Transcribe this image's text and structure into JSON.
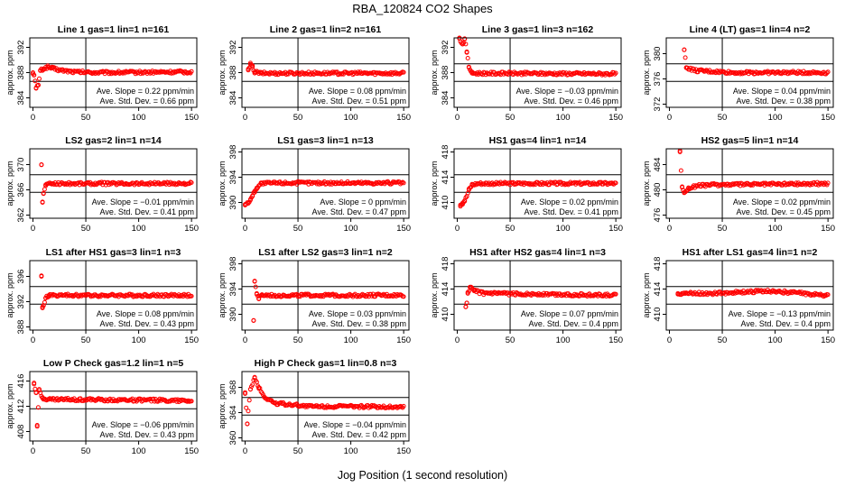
{
  "title": "RBA_120824  CO2 Shapes",
  "xlabel": "Jog Position (1 second resolution)",
  "colors": {
    "points": "#ff0000",
    "axes": "#000000"
  },
  "chart_data": [
    {
      "type": "scatter",
      "title": "Line 1 gas=1 lin=1 n=161",
      "ylabel": "approx. ppm",
      "xlim": [
        -3,
        155
      ],
      "ylim": [
        382.5,
        393.5
      ],
      "xticks": [
        0,
        50,
        100,
        150
      ],
      "yticks": [
        384,
        388,
        392
      ],
      "hlines": [
        386.6,
        389.4
      ],
      "vline": 50,
      "slope": "Ave. Slope = 0.22 ppm/min",
      "stddev": "Ave. Std. Dev. = 0.66 ppm",
      "shape": [
        [
          0,
          388
        ],
        [
          1,
          387.6
        ],
        [
          3,
          385.5
        ],
        [
          5,
          386
        ],
        [
          7,
          388.3
        ],
        [
          10,
          388.6
        ],
        [
          14,
          388.9
        ],
        [
          18,
          388.7
        ],
        [
          25,
          388.4
        ],
        [
          40,
          388.1
        ],
        [
          60,
          388.0
        ],
        [
          150,
          388.1
        ]
      ]
    },
    {
      "type": "scatter",
      "title": "Line 2 gas=1 lin=2 n=161",
      "ylabel": "approx. ppm",
      "xlim": [
        -3,
        155
      ],
      "ylim": [
        382.5,
        393.5
      ],
      "xticks": [
        0,
        50,
        100,
        150
      ],
      "yticks": [
        384,
        388,
        392
      ],
      "hlines": [
        386.6,
        389.4
      ],
      "vline": 50,
      "slope": "Ave. Slope = 0.08 ppm/min",
      "stddev": "Ave. Std. Dev. = 0.51 ppm",
      "shape": [
        [
          3,
          388.4
        ],
        [
          5,
          389.3
        ],
        [
          7,
          388.9
        ],
        [
          9,
          388.1
        ],
        [
          15,
          387.9
        ],
        [
          150,
          387.9
        ]
      ]
    },
    {
      "type": "scatter",
      "title": "Line 3 gas=1 lin=3 n=162",
      "ylabel": "approx. ppm",
      "xlim": [
        -3,
        155
      ],
      "ylim": [
        382.5,
        393.5
      ],
      "xticks": [
        0,
        50,
        100,
        150
      ],
      "yticks": [
        384,
        388,
        392
      ],
      "hlines": [
        386.6,
        389.4
      ],
      "vline": 50,
      "slope": "Ave. Slope = −0.03 ppm/min",
      "stddev": "Ave. Std. Dev. = 0.46 ppm",
      "shape": [
        [
          2,
          393.4
        ],
        [
          5,
          392.5
        ],
        [
          7,
          393.3
        ],
        [
          9,
          391.3
        ],
        [
          11,
          388.9
        ],
        [
          14,
          387.9
        ],
        [
          150,
          387.8
        ]
      ]
    },
    {
      "type": "scatter",
      "title": "Line 4 (LT) gas=1 lin=4 n=2",
      "ylabel": "approx. ppm",
      "xlim": [
        -3,
        155
      ],
      "ylim": [
        371.5,
        382.5
      ],
      "xticks": [
        0,
        50,
        100,
        150
      ],
      "yticks": [
        372,
        376,
        380
      ],
      "hlines": [
        375.6,
        378.4
      ],
      "vline": 50,
      "slope": "Ave. Slope = 0.04 ppm/min",
      "stddev": "Ave. Std. Dev. = 0.38 ppm",
      "shape": [
        [
          14,
          380.6
        ],
        [
          16,
          377.8
        ],
        [
          25,
          377.3
        ],
        [
          60,
          377.0
        ],
        [
          150,
          377.0
        ]
      ]
    },
    {
      "type": "scatter",
      "title": "LS2 gas=2 lin=1 n=14",
      "ylabel": "approx. ppm",
      "xlim": [
        -3,
        155
      ],
      "ylim": [
        361.5,
        372.5
      ],
      "xticks": [
        0,
        50,
        100,
        150
      ],
      "yticks": [
        362,
        366,
        370
      ],
      "hlines": [
        365.6,
        368.4
      ],
      "vline": 50,
      "slope": "Ave. Slope = −0.01 ppm/min",
      "stddev": "Ave. Std. Dev. = 0.41 ppm",
      "shape": [
        [
          8,
          370
        ],
        [
          9,
          364
        ],
        [
          10,
          365.4
        ],
        [
          12,
          366.8
        ],
        [
          18,
          367
        ],
        [
          150,
          367
        ]
      ]
    },
    {
      "type": "scatter",
      "title": "LS1 gas=3 lin=1 n=13",
      "ylabel": "approx. ppm",
      "xlim": [
        -3,
        155
      ],
      "ylim": [
        387.5,
        398.5
      ],
      "xticks": [
        0,
        50,
        100,
        150
      ],
      "yticks": [
        390,
        394,
        398
      ],
      "hlines": [
        391.6,
        394.4
      ],
      "vline": 50,
      "slope": "Ave. Slope = 0 ppm/min",
      "stddev": "Ave. Std. Dev. = 0.47 ppm",
      "shape": [
        [
          0,
          389.7
        ],
        [
          3,
          389.9
        ],
        [
          5,
          390.5
        ],
        [
          7,
          391
        ],
        [
          9,
          391.8
        ],
        [
          11,
          392.3
        ],
        [
          15,
          393
        ],
        [
          30,
          393.1
        ],
        [
          150,
          393.1
        ]
      ]
    },
    {
      "type": "scatter",
      "title": "HS1 gas=4 lin=1 n=14",
      "ylabel": "approx. ppm",
      "xlim": [
        -3,
        155
      ],
      "ylim": [
        407.5,
        418.5
      ],
      "xticks": [
        0,
        50,
        100,
        150
      ],
      "yticks": [
        410,
        414,
        418
      ],
      "hlines": [
        411.6,
        414.4
      ],
      "vline": 50,
      "slope": "Ave. Slope = 0.02 ppm/min",
      "stddev": "Ave. Std. Dev. = 0.41 ppm",
      "shape": [
        [
          3,
          409.6
        ],
        [
          5,
          409.9
        ],
        [
          7,
          410.3
        ],
        [
          9,
          411
        ],
        [
          11,
          412
        ],
        [
          14,
          412.8
        ],
        [
          20,
          413
        ],
        [
          150,
          413
        ]
      ]
    },
    {
      "type": "scatter",
      "title": "HS2 gas=5 lin=1 n=14",
      "ylabel": "approx. ppm",
      "xlim": [
        -3,
        155
      ],
      "ylim": [
        475.5,
        486.5
      ],
      "xticks": [
        0,
        50,
        100,
        150
      ],
      "yticks": [
        476,
        480,
        484
      ],
      "hlines": [
        479.6,
        482.4
      ],
      "vline": 50,
      "slope": "Ave. Slope = 0.02 ppm/min",
      "stddev": "Ave. Std. Dev. = 0.45 ppm",
      "shape": [
        [
          10,
          486
        ],
        [
          12,
          480.5
        ],
        [
          14,
          479.6
        ],
        [
          18,
          480.2
        ],
        [
          25,
          480.6
        ],
        [
          40,
          480.8
        ],
        [
          150,
          481
        ]
      ]
    },
    {
      "type": "scatter",
      "title": "LS1 after HS1 gas=3 lin=1 n=3",
      "ylabel": "approx. ppm",
      "xlim": [
        -3,
        155
      ],
      "ylim": [
        387.5,
        398.5
      ],
      "xticks": [
        0,
        50,
        100,
        150
      ],
      "yticks": [
        388,
        392,
        396
      ],
      "hlines": [
        391.6,
        394.4
      ],
      "vline": 50,
      "slope": "Ave. Slope = 0.08 ppm/min",
      "stddev": "Ave. Std. Dev. = 0.43 ppm",
      "shape": [
        [
          8,
          396
        ],
        [
          9,
          391
        ],
        [
          10,
          391.4
        ],
        [
          12,
          392.6
        ],
        [
          15,
          393
        ],
        [
          150,
          393
        ]
      ]
    },
    {
      "type": "scatter",
      "title": "LS1 after LS2 gas=3 lin=1 n=2",
      "ylabel": "approx. ppm",
      "xlim": [
        -3,
        155
      ],
      "ylim": [
        387.5,
        398.5
      ],
      "xticks": [
        0,
        50,
        100,
        150
      ],
      "yticks": [
        390,
        394,
        398
      ],
      "hlines": [
        391.6,
        394.4
      ],
      "vline": 50,
      "slope": "Ave. Slope = 0.03 ppm/min",
      "stddev": "Ave. Std. Dev. = 0.38 ppm",
      "shape": [
        [
          8,
          389
        ],
        [
          9,
          395.2
        ],
        [
          11,
          393.3
        ],
        [
          13,
          392.5
        ],
        [
          16,
          393
        ],
        [
          150,
          393
        ]
      ]
    },
    {
      "type": "scatter",
      "title": "HS1 after HS2 gas=4 lin=1 n=3",
      "ylabel": "approx. ppm",
      "xlim": [
        -3,
        155
      ],
      "ylim": [
        407.5,
        418.5
      ],
      "xticks": [
        0,
        50,
        100,
        150
      ],
      "yticks": [
        410,
        414,
        418
      ],
      "hlines": [
        411.6,
        414.4
      ],
      "vline": 50,
      "slope": "Ave. Slope = 0.07 ppm/min",
      "stddev": "Ave. Std. Dev. = 0.4 ppm",
      "shape": [
        [
          8,
          411.2
        ],
        [
          9,
          411.8
        ],
        [
          10,
          413.3
        ],
        [
          12,
          414.3
        ],
        [
          16,
          413.7
        ],
        [
          25,
          413.3
        ],
        [
          150,
          413
        ]
      ]
    },
    {
      "type": "scatter",
      "title": "HS1 after LS1 gas=4 lin=1 n=2",
      "ylabel": "approx. ppm",
      "xlim": [
        -3,
        155
      ],
      "ylim": [
        407.5,
        418.5
      ],
      "xticks": [
        0,
        50,
        100,
        150
      ],
      "yticks": [
        410,
        414,
        418
      ],
      "hlines": [
        411.6,
        414.4
      ],
      "vline": 50,
      "slope": "Ave. Slope = −0.13 ppm/min",
      "stddev": "Ave. Std. Dev. = 0.4 ppm",
      "shape": [
        [
          8,
          413.3
        ],
        [
          40,
          413.3
        ],
        [
          95,
          413.7
        ],
        [
          150,
          413.0
        ]
      ]
    },
    {
      "type": "scatter",
      "title": "Low P Check gas=1.2 lin=1 n=5",
      "ylabel": "approx. ppm",
      "xlim": [
        -3,
        155
      ],
      "ylim": [
        406.5,
        417.5
      ],
      "xticks": [
        0,
        50,
        100,
        150
      ],
      "yticks": [
        408,
        412,
        416
      ],
      "hlines": [
        411.6,
        414.4
      ],
      "vline": 50,
      "slope": "Ave. Slope = −0.06 ppm/min",
      "stddev": "Ave. Std. Dev. = 0.43 ppm",
      "shape": [
        [
          1,
          415.7
        ],
        [
          3,
          414.2
        ],
        [
          4,
          409
        ],
        [
          6,
          414.5
        ],
        [
          9,
          413.3
        ],
        [
          15,
          413.1
        ],
        [
          150,
          412.9
        ]
      ]
    },
    {
      "type": "scatter",
      "title": "High P Check gas=1 lin=0.8 n=3",
      "ylabel": "approx. ppm",
      "xlim": [
        -3,
        155
      ],
      "ylim": [
        359.5,
        370.5
      ],
      "xticks": [
        0,
        50,
        100,
        150
      ],
      "yticks": [
        360,
        364,
        368
      ],
      "hlines": [
        363.6,
        366.4
      ],
      "vline": 50,
      "slope": "Ave. Slope = −0.04 ppm/min",
      "stddev": "Ave. Std. Dev. = 0.42 ppm",
      "shape": [
        [
          0,
          367
        ],
        [
          2,
          362.2
        ],
        [
          5,
          367.7
        ],
        [
          9,
          369.5
        ],
        [
          13,
          368
        ],
        [
          18,
          366.5
        ],
        [
          28,
          365.5
        ],
        [
          60,
          365
        ],
        [
          150,
          364.9
        ]
      ]
    }
  ]
}
